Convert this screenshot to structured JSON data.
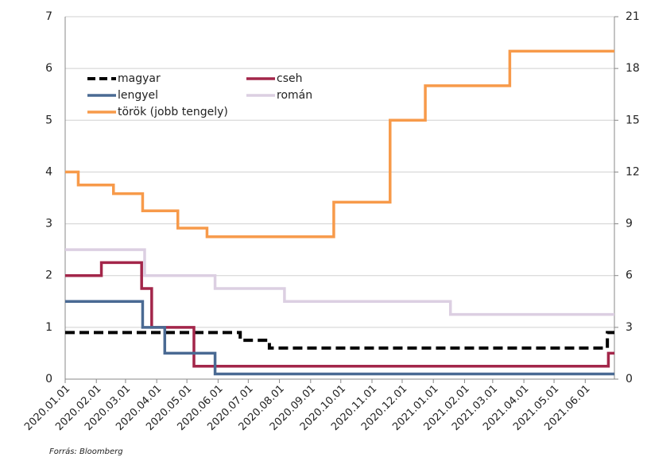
{
  "chart_data": {
    "type": "line",
    "step": true,
    "source": "Forrás: Bloomberg",
    "xlim": [
      "2020.01.01",
      "2021.06.30"
    ],
    "xticks": [
      "2020.01.01",
      "2020.02.01",
      "2020.03.01",
      "2020.04.01",
      "2020.05.01",
      "2020.06.01",
      "2020.07.01",
      "2020.08.01",
      "2020.09.01",
      "2020.10.01",
      "2020.11.01",
      "2020.12.01",
      "2021.01.01",
      "2021.02.01",
      "2021.03.01",
      "2021.04.01",
      "2021.05.01",
      "2021.06.01"
    ],
    "ylim": [
      0,
      7
    ],
    "yticks": [
      0,
      1,
      2,
      3,
      4,
      5,
      6,
      7
    ],
    "y2lim": [
      0,
      21
    ],
    "y2ticks": [
      0,
      3,
      6,
      9,
      12,
      15,
      18,
      21
    ],
    "grid": true,
    "series": [
      {
        "name": "magyar",
        "color": "#000000",
        "dashed": true,
        "x": [
          "2020.01.01",
          "2020.06.23",
          "2020.07.22",
          "2021.06.23",
          "2021.06.30"
        ],
        "values": [
          0.9,
          0.75,
          0.6,
          0.9,
          0.9
        ]
      },
      {
        "name": "cseh",
        "color": "#a3264a",
        "x": [
          "2020.01.01",
          "2020.02.06",
          "2020.03.17",
          "2020.03.27",
          "2020.05.08",
          "2021.06.24",
          "2021.06.30"
        ],
        "values": [
          2.0,
          2.25,
          1.75,
          1.0,
          0.25,
          0.5,
          0.5
        ]
      },
      {
        "name": "lengyel",
        "color": "#4a6a93",
        "x": [
          "2020.01.01",
          "2020.03.18",
          "2020.04.09",
          "2020.05.29",
          "2021.06.30"
        ],
        "values": [
          1.5,
          1.0,
          0.5,
          0.1,
          0.1
        ]
      },
      {
        "name": "román",
        "color": "#dccfe2",
        "x": [
          "2020.01.01",
          "2020.03.20",
          "2020.05.29",
          "2020.08.06",
          "2021.01.18",
          "2021.06.30"
        ],
        "values": [
          2.5,
          2.0,
          1.75,
          1.5,
          1.25,
          1.25
        ]
      },
      {
        "name": "török (jobb tengely)",
        "color": "#f79a4a",
        "axis": "y2",
        "x": [
          "2020.01.01",
          "2020.01.14",
          "2020.02.18",
          "2020.03.18",
          "2020.04.22",
          "2020.05.21",
          "2020.09.24",
          "2020.11.19",
          "2020.12.24",
          "2021.03.18",
          "2021.06.30"
        ],
        "values": [
          12,
          11.25,
          10.75,
          9.75,
          8.75,
          8.25,
          10.25,
          15,
          17,
          19,
          19
        ]
      }
    ]
  }
}
